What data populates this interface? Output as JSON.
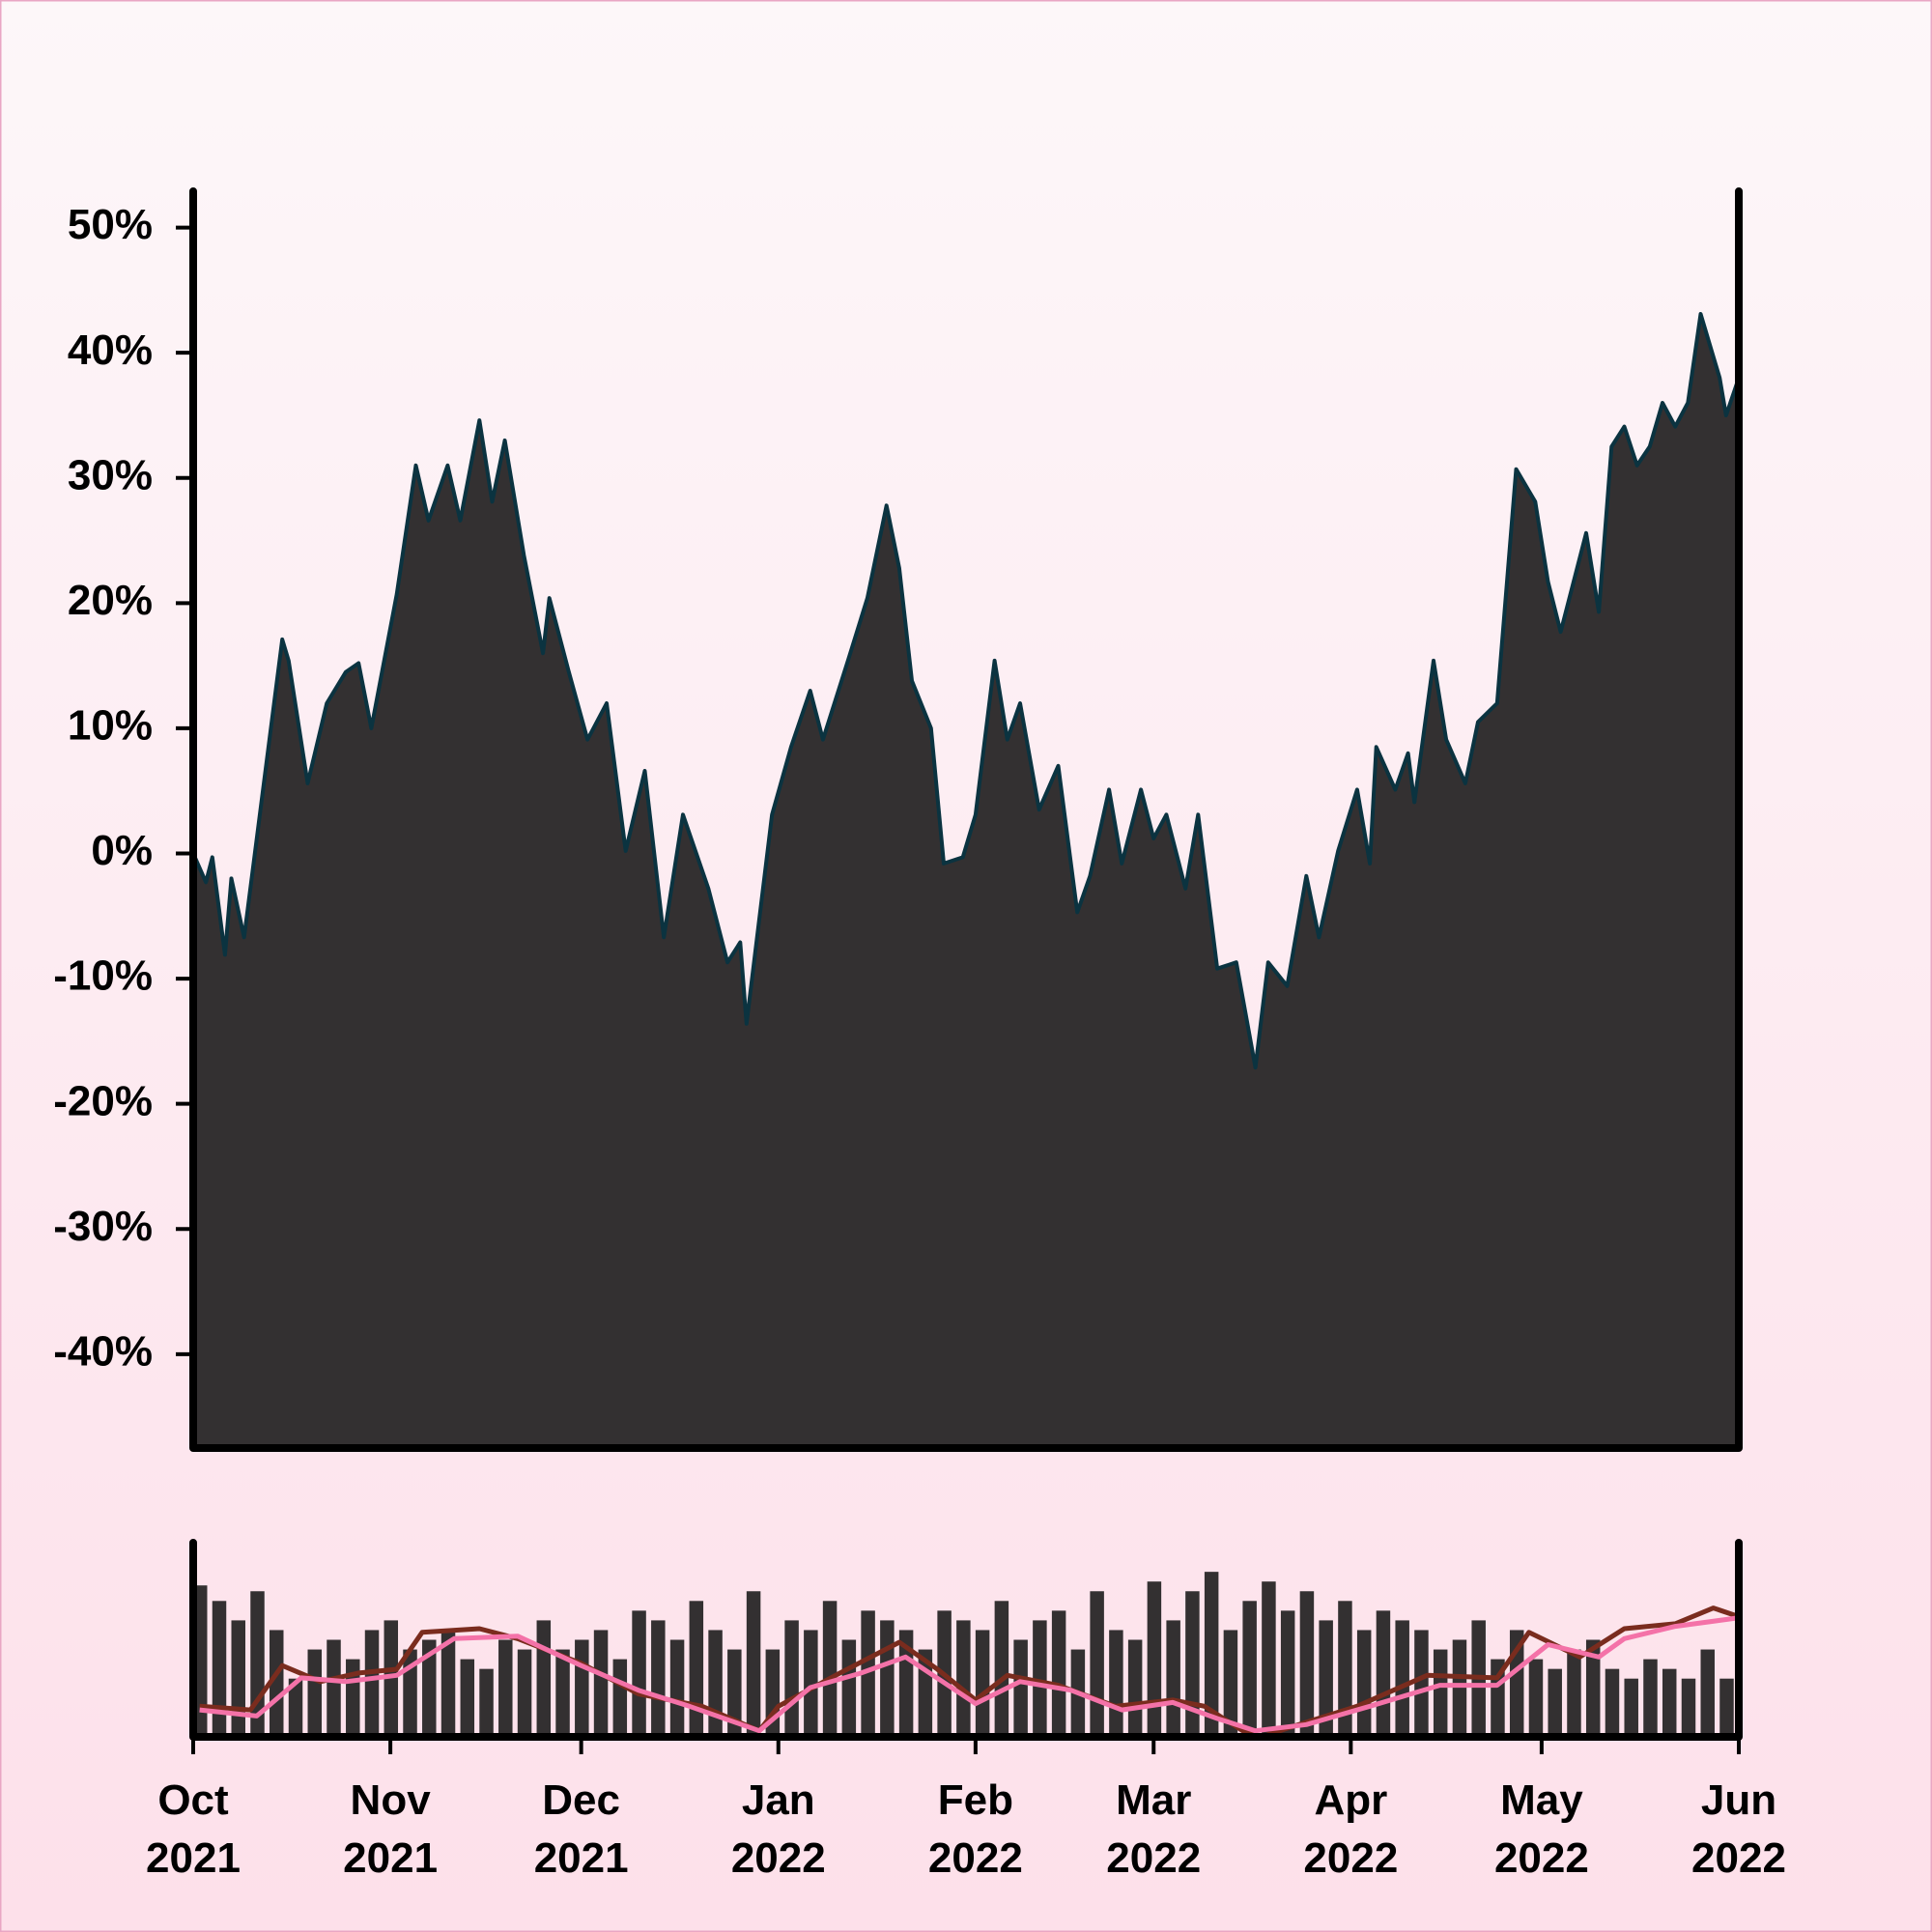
{
  "chart_data": [
    {
      "type": "area",
      "x": [
        0,
        2,
        3,
        5,
        6,
        8,
        14,
        15,
        18,
        21,
        24,
        26,
        28,
        32,
        35,
        37,
        40,
        42,
        45,
        47,
        49,
        52,
        55,
        56,
        59,
        62,
        65,
        68,
        71,
        74,
        77,
        81,
        84,
        86,
        87,
        91,
        94,
        97,
        99,
        103,
        106,
        109,
        111,
        113,
        116,
        118,
        121,
        123,
        126,
        128,
        130,
        133,
        136,
        139,
        141,
        144,
        146,
        149,
        151,
        153,
        156,
        158,
        161,
        164,
        167,
        169,
        172,
        175,
        177,
        180,
        183,
        185,
        186,
        189,
        191,
        192,
        195,
        197,
        200,
        202,
        205,
        208,
        211,
        213,
        215,
        219,
        221,
        223,
        225,
        227,
        229,
        231,
        233,
        235,
        237,
        240,
        241,
        243
      ],
      "values": [
        0,
        -2.3,
        -0.3,
        -8.1,
        -2,
        -6.7,
        17.1,
        15.4,
        5.6,
        12,
        14.5,
        15.2,
        10,
        20.7,
        31,
        26.6,
        31,
        26.6,
        34.6,
        28.1,
        33,
        23.8,
        16,
        20.4,
        14.6,
        9.1,
        12,
        0.2,
        6.6,
        -6.7,
        3.1,
        -2.8,
        -8.7,
        -7.1,
        -13.6,
        3.1,
        8.5,
        13,
        9.1,
        15.5,
        20.4,
        27.8,
        22.8,
        13.8,
        10,
        -0.8,
        -0.3,
        3.1,
        15.4,
        9.1,
        12,
        3.5,
        7,
        -4.7,
        -1.8,
        5.1,
        -0.8,
        5.1,
        1.2,
        3.1,
        -2.8,
        3.1,
        -9.2,
        -8.7,
        -17.1,
        -8.7,
        -10.6,
        -1.8,
        -6.7,
        0.2,
        5.1,
        -0.8,
        8.5,
        5.1,
        8,
        4.1,
        15.4,
        9.1,
        5.6,
        10.5,
        12,
        30.7,
        28.1,
        21.7,
        17.7,
        25.6,
        19.3,
        32.5,
        34.1,
        31,
        32.5,
        36,
        34.1,
        36,
        43.1,
        38,
        35,
        38
      ],
      "color": "#333031",
      "line_color": "#0b3340",
      "xlim": [
        0,
        243
      ],
      "ylim": [
        -47.5,
        52.9
      ],
      "yticks": [
        {
          "value": 50,
          "label": "50%"
        },
        {
          "value": 40,
          "label": "40%"
        },
        {
          "value": 30,
          "label": "30%"
        },
        {
          "value": 20,
          "label": "20%"
        },
        {
          "value": 10,
          "label": "10%"
        },
        {
          "value": 0,
          "label": "0%"
        },
        {
          "value": -10,
          "label": "-10%"
        },
        {
          "value": -20,
          "label": "-20%"
        },
        {
          "value": -30,
          "label": "-30%"
        },
        {
          "value": -40,
          "label": "-40%"
        }
      ]
    },
    {
      "type": "line",
      "xlim": [
        0,
        243
      ],
      "ylim": [
        -17.6,
        66
      ],
      "y2lim": [
        0,
        100
      ],
      "xticks": [
        {
          "value": 0,
          "label": "Oct\n2021"
        },
        {
          "value": 31,
          "label": "Nov\n2021"
        },
        {
          "value": 61,
          "label": "Dec\n2021"
        },
        {
          "value": 92,
          "label": "Jan\n2022"
        },
        {
          "value": 123,
          "label": "Feb\n2022"
        },
        {
          "value": 151,
          "label": "Mar\n2022"
        },
        {
          "value": 182,
          "label": "Apr\n2022"
        },
        {
          "value": 212,
          "label": "May\n2022"
        },
        {
          "value": 243,
          "label": "Jun\n2022"
        }
      ],
      "series": [
        {
          "type": "bar",
          "axis": "y2",
          "color": "#333031",
          "x": [
            0,
            3,
            6,
            9,
            12,
            15,
            18,
            21,
            24,
            27,
            30,
            33,
            36,
            39,
            42,
            45,
            48,
            51,
            54,
            57,
            60,
            63,
            66,
            69,
            72,
            75,
            78,
            81,
            84,
            87,
            90,
            93,
            96,
            99,
            102,
            105,
            108,
            111,
            114,
            117,
            120,
            123,
            126,
            129,
            132,
            135,
            138,
            141,
            144,
            147,
            150,
            153,
            156,
            159,
            162,
            165,
            168,
            171,
            174,
            177,
            180,
            183,
            186,
            189,
            192,
            195,
            198,
            201,
            204,
            207,
            210,
            213,
            216,
            219,
            222,
            225,
            228,
            231,
            234,
            237,
            240
          ],
          "values": [
            78,
            70,
            60,
            75,
            55,
            30,
            45,
            50,
            40,
            55,
            60,
            45,
            50,
            55,
            40,
            35,
            50,
            45,
            60,
            45,
            50,
            55,
            40,
            65,
            60,
            50,
            70,
            55,
            45,
            75,
            45,
            60,
            55,
            70,
            50,
            65,
            60,
            55,
            45,
            65,
            60,
            55,
            70,
            50,
            60,
            65,
            45,
            75,
            55,
            50,
            80,
            60,
            75,
            85,
            55,
            70,
            80,
            65,
            75,
            60,
            70,
            55,
            65,
            60,
            55,
            45,
            50,
            60,
            40,
            55,
            40,
            35,
            45,
            50,
            35,
            30,
            40,
            35,
            30,
            45,
            30
          ]
        },
        {
          "color": "#7a2c1e",
          "x": [
            1,
            9,
            14,
            20,
            26,
            32,
            36,
            45,
            51,
            61,
            70,
            80,
            89,
            92,
            101,
            111,
            117,
            123,
            128,
            136,
            145,
            154,
            159,
            165,
            168,
            172,
            183,
            194,
            205,
            210,
            218,
            225,
            233,
            239,
            243
          ],
          "values": [
            -4.4,
            -6,
            13.1,
            6.2,
            9.9,
            11.5,
            27.4,
            29,
            24.7,
            14.1,
            0.9,
            -4.4,
            -15,
            -4.4,
            8.9,
            23.1,
            11.5,
            -1.7,
            8.9,
            4.6,
            -4.4,
            -1.7,
            -4.4,
            -15,
            -17.6,
            -13.9,
            -4.4,
            8.9,
            7.8,
            27.4,
            16.8,
            29,
            31.1,
            37.9,
            34.2
          ]
        },
        {
          "color": "#f472a8",
          "x": [
            1,
            10,
            17,
            24,
            32,
            41,
            51,
            61,
            70,
            78,
            89,
            97,
            105,
            112,
            123,
            130,
            138,
            146,
            154,
            161,
            167,
            175,
            185,
            196,
            205,
            213,
            221,
            225,
            233,
            243
          ],
          "values": [
            -6,
            -8.6,
            7.8,
            6.2,
            8.9,
            24.7,
            25.8,
            13.1,
            2.5,
            -4.4,
            -15,
            3.6,
            9.9,
            16.8,
            -3.3,
            6.2,
            2.5,
            -6,
            -2.8,
            -9.7,
            -15,
            -12.3,
            -4.4,
            4.6,
            4.6,
            22.1,
            16.8,
            24.7,
            30,
            33.7
          ]
        }
      ]
    }
  ]
}
